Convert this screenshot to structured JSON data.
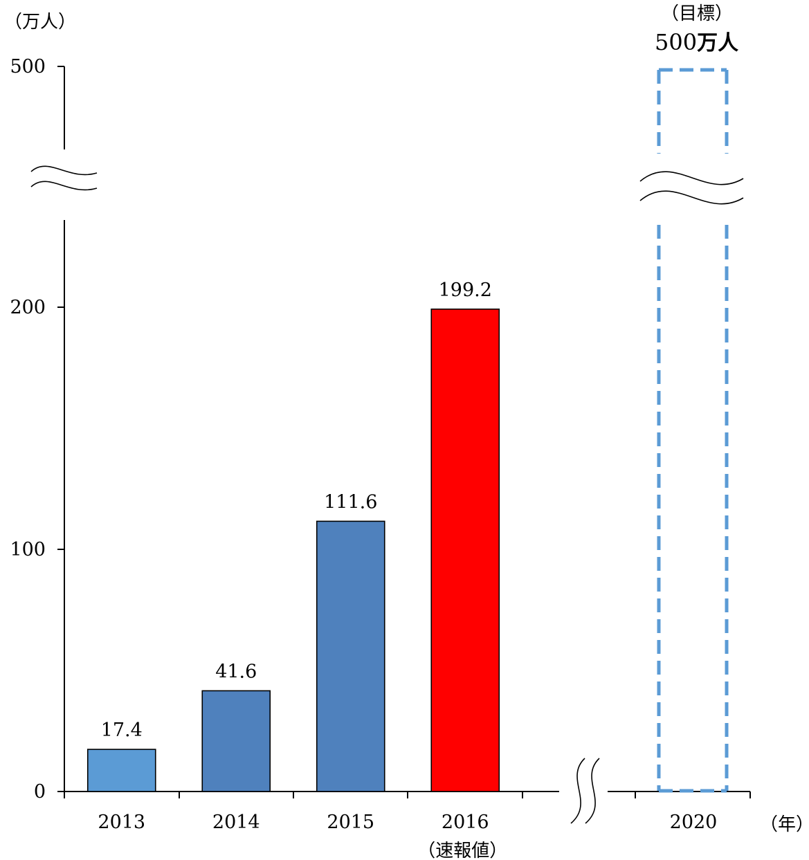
{
  "chart_data": {
    "type": "bar",
    "y_unit_label": "（万人）",
    "x_unit_label": "（年）",
    "y_ticks": [
      0,
      100,
      200,
      500
    ],
    "axis_break": "between 200 and 500",
    "categories": [
      {
        "year": "2013",
        "sublabel": "",
        "value": 17.4,
        "value_label": "17.4",
        "color": "#5B9BD5"
      },
      {
        "year": "2014",
        "sublabel": "",
        "value": 41.6,
        "value_label": "41.6",
        "color": "#4F81BD"
      },
      {
        "year": "2015",
        "sublabel": "",
        "value": 111.6,
        "value_label": "111.6",
        "color": "#4F81BD"
      },
      {
        "year": "2016",
        "sublabel": "（速報値）",
        "value": 199.2,
        "value_label": "199.2",
        "color": "#FF0000"
      }
    ],
    "target": {
      "year": "2020",
      "value": 500,
      "caption": "（目標）",
      "value_number": "500",
      "value_unit": "万人",
      "style": "dashed outline",
      "color": "#5B9BD5"
    }
  }
}
